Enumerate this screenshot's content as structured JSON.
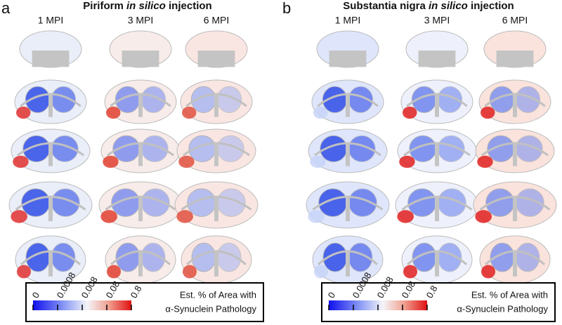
{
  "panels": [
    {
      "letter": "a",
      "title": {
        "prefix": "Piriform",
        "italic": "in silico",
        "suffix": "injection"
      },
      "columns": [
        "1 MPI",
        "3 MPI",
        "6 MPI"
      ],
      "colorbar": {
        "ticks": [
          "0",
          "0.0008",
          "0.008",
          "0.08",
          "0.8"
        ],
        "label_line1": "Est. % of Area with",
        "label_line2": "α-Synuclein Pathology"
      }
    },
    {
      "letter": "b",
      "title": {
        "prefix": "Substantia nigra",
        "italic": "in silico",
        "suffix": "injection"
      },
      "columns": [
        "1 MPI",
        "3 MPI",
        "6 MPI"
      ],
      "colorbar": {
        "ticks": [
          "0",
          "0.0008",
          "0.008",
          "0.08",
          "0.8"
        ],
        "label_line1": "Est. % of Area with",
        "label_line2": "α-Synuclein Pathology"
      }
    }
  ]
}
